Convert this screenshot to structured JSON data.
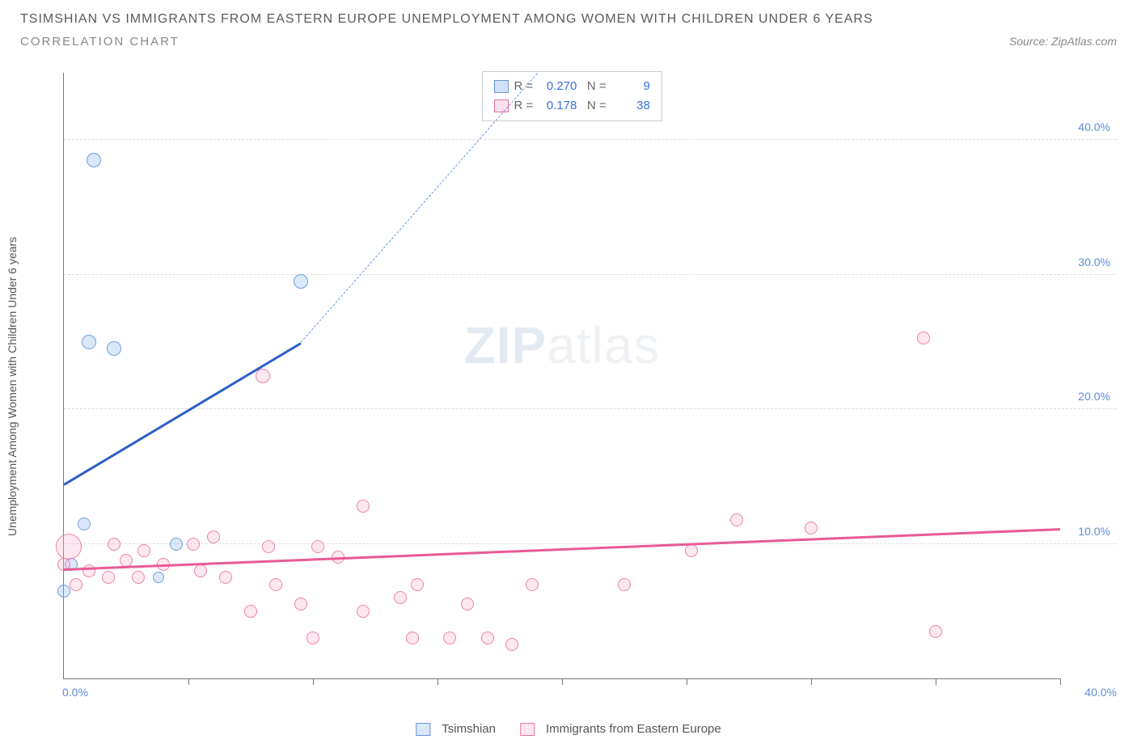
{
  "title": "TSIMSHIAN VS IMMIGRANTS FROM EASTERN EUROPE UNEMPLOYMENT AMONG WOMEN WITH CHILDREN UNDER 6 YEARS",
  "subtitle": "CORRELATION CHART",
  "source": "Source: ZipAtlas.com",
  "y_axis_label": "Unemployment Among Women with Children Under 6 years",
  "watermark_a": "ZIP",
  "watermark_b": "atlas",
  "chart": {
    "type": "scatter",
    "xlim": [
      0,
      40
    ],
    "ylim": [
      0,
      45
    ],
    "x_tick_min": "0.0%",
    "x_tick_max": "40.0%",
    "y_ticks": [
      {
        "v": 10,
        "label": "10.0%"
      },
      {
        "v": 20,
        "label": "20.0%"
      },
      {
        "v": 30,
        "label": "30.0%"
      },
      {
        "v": 40,
        "label": "40.0%"
      }
    ],
    "x_tick_positions": [
      5,
      10,
      15,
      20,
      25,
      30,
      35,
      40
    ],
    "background_color": "#ffffff",
    "grid_color": "#dddddd",
    "axis_color": "#777777",
    "series": [
      {
        "name": "Tsimshian",
        "label": "Tsimshian",
        "color_border": "#6496dc",
        "color_fill": "rgba(150,190,240,0.35)",
        "R": "0.270",
        "N": "9",
        "trend": {
          "x1": 0,
          "y1": 14.5,
          "x2": 9.5,
          "y2": 25.0,
          "dash_x2": 19,
          "dash_y2": 45
        },
        "points": [
          {
            "x": 1.2,
            "y": 38.5,
            "r": 9
          },
          {
            "x": 2.0,
            "y": 24.5,
            "r": 9
          },
          {
            "x": 1.0,
            "y": 25.0,
            "r": 9
          },
          {
            "x": 9.5,
            "y": 29.5,
            "r": 9
          },
          {
            "x": 0.8,
            "y": 11.5,
            "r": 8
          },
          {
            "x": 0.3,
            "y": 8.5,
            "r": 8
          },
          {
            "x": 3.8,
            "y": 7.5,
            "r": 7
          },
          {
            "x": 4.5,
            "y": 10.0,
            "r": 8
          },
          {
            "x": 0.0,
            "y": 6.5,
            "r": 8
          }
        ]
      },
      {
        "name": "Immigrants from Eastern Europe",
        "label": "Immigrants from Eastern Europe",
        "color_border": "#eb6ea0",
        "color_fill": "rgba(250,180,210,0.3)",
        "R": "0.178",
        "N": "38",
        "trend": {
          "x1": 0,
          "y1": 8.2,
          "x2": 40,
          "y2": 11.2
        },
        "points": [
          {
            "x": 0.2,
            "y": 9.8,
            "r": 16
          },
          {
            "x": 8.0,
            "y": 22.5,
            "r": 9
          },
          {
            "x": 34.5,
            "y": 25.3,
            "r": 8
          },
          {
            "x": 12.0,
            "y": 12.8,
            "r": 8
          },
          {
            "x": 27.0,
            "y": 11.8,
            "r": 8
          },
          {
            "x": 30.0,
            "y": 11.2,
            "r": 8
          },
          {
            "x": 25.2,
            "y": 9.5,
            "r": 8
          },
          {
            "x": 10.2,
            "y": 9.8,
            "r": 8
          },
          {
            "x": 11.0,
            "y": 9.0,
            "r": 8
          },
          {
            "x": 8.2,
            "y": 9.8,
            "r": 8
          },
          {
            "x": 2.0,
            "y": 10.0,
            "r": 8
          },
          {
            "x": 3.2,
            "y": 9.5,
            "r": 8
          },
          {
            "x": 5.2,
            "y": 10.0,
            "r": 8
          },
          {
            "x": 1.0,
            "y": 8.0,
            "r": 8
          },
          {
            "x": 1.8,
            "y": 7.5,
            "r": 8
          },
          {
            "x": 0.5,
            "y": 7.0,
            "r": 8
          },
          {
            "x": 3.0,
            "y": 7.5,
            "r": 8
          },
          {
            "x": 5.5,
            "y": 8.0,
            "r": 8
          },
          {
            "x": 6.5,
            "y": 7.5,
            "r": 8
          },
          {
            "x": 8.5,
            "y": 7.0,
            "r": 8
          },
          {
            "x": 7.5,
            "y": 5.0,
            "r": 8
          },
          {
            "x": 9.5,
            "y": 5.5,
            "r": 8
          },
          {
            "x": 10.0,
            "y": 3.0,
            "r": 8
          },
          {
            "x": 12.0,
            "y": 5.0,
            "r": 8
          },
          {
            "x": 13.5,
            "y": 6.0,
            "r": 8
          },
          {
            "x": 14.2,
            "y": 7.0,
            "r": 8
          },
          {
            "x": 14.0,
            "y": 3.0,
            "r": 8
          },
          {
            "x": 15.5,
            "y": 3.0,
            "r": 8
          },
          {
            "x": 16.2,
            "y": 5.5,
            "r": 8
          },
          {
            "x": 17.0,
            "y": 3.0,
            "r": 8
          },
          {
            "x": 18.0,
            "y": 2.5,
            "r": 8
          },
          {
            "x": 18.8,
            "y": 7.0,
            "r": 8
          },
          {
            "x": 22.5,
            "y": 7.0,
            "r": 8
          },
          {
            "x": 35.0,
            "y": 3.5,
            "r": 8
          },
          {
            "x": 2.5,
            "y": 8.8,
            "r": 8
          },
          {
            "x": 4.0,
            "y": 8.5,
            "r": 8
          },
          {
            "x": 0.0,
            "y": 8.5,
            "r": 8
          },
          {
            "x": 6.0,
            "y": 10.5,
            "r": 8
          }
        ]
      }
    ]
  },
  "legend_top": {
    "rows": [
      {
        "swatch_fill": "rgba(150,190,240,0.45)",
        "swatch_border": "#6496dc",
        "R": "0.270",
        "N": "9"
      },
      {
        "swatch_fill": "rgba(250,180,210,0.4)",
        "swatch_border": "#eb6ea0",
        "R": "0.178",
        "N": "38"
      }
    ]
  }
}
